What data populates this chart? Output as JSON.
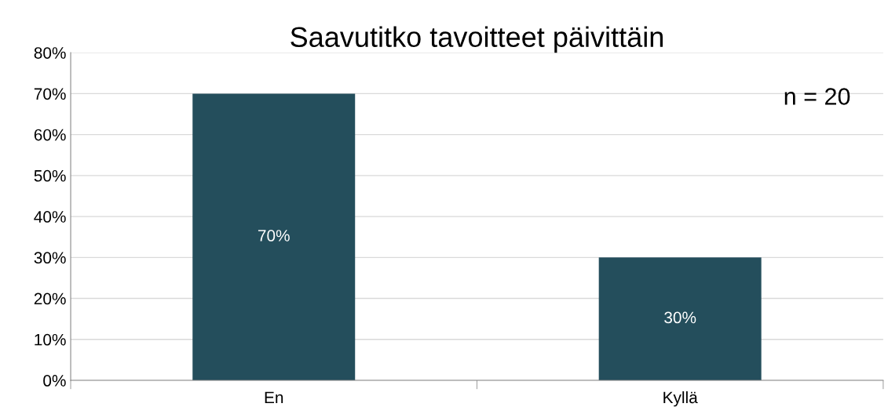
{
  "chart_data": {
    "type": "bar",
    "title": "Saavutitko tavoitteet päivittäin",
    "categories": [
      "En",
      "Kyllä"
    ],
    "values": [
      70,
      30
    ],
    "color": "#244e5c",
    "ylim": [
      0,
      80
    ],
    "yticks": [
      {
        "value": 0,
        "label": "0%"
      },
      {
        "value": 10,
        "label": "10%"
      },
      {
        "value": 20,
        "label": "20%"
      },
      {
        "value": 30,
        "label": "30%"
      },
      {
        "value": 40,
        "label": "40%"
      },
      {
        "value": 50,
        "label": "50%"
      },
      {
        "value": 60,
        "label": "60%"
      },
      {
        "value": 70,
        "label": "70%"
      },
      {
        "value": 80,
        "label": "80%"
      }
    ],
    "value_labels": [
      "70%",
      "30%"
    ],
    "annotations": [
      "n = 20"
    ],
    "grid": "y",
    "legend": false
  }
}
